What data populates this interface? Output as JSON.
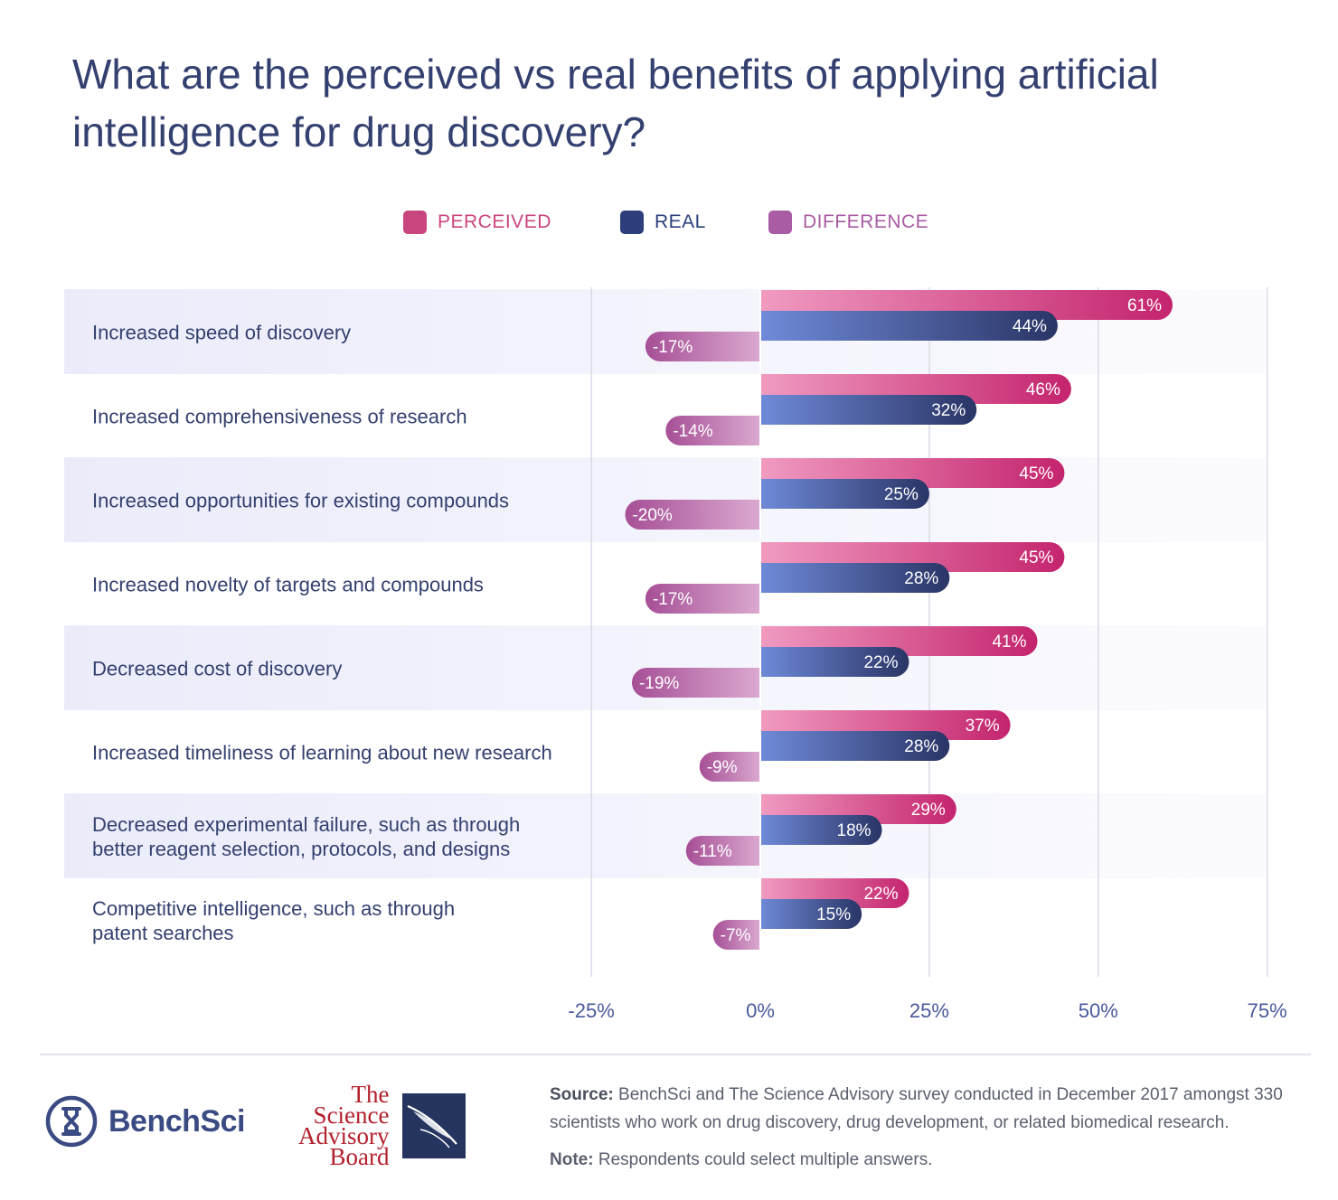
{
  "title": "What are the perceived vs real benefits of applying artificial intelligence for drug discovery?",
  "legend": [
    {
      "label": "PERCEIVED",
      "color": "#c9457e"
    },
    {
      "label": "REAL",
      "color": "#2c3f7c"
    },
    {
      "label": "DIFFERENCE",
      "color": "#a95ba3"
    }
  ],
  "colors": {
    "perceived_start": "#f09bc0",
    "perceived_end": "#c4246e",
    "real_start": "#6f8ad8",
    "real_end": "#2a3566",
    "difference_start": "#a64f96",
    "difference_end": "#dba9d0",
    "band": "#eff0fb",
    "grid": "#d9dbe8",
    "axis_text": "#4a5a9a",
    "category_text": "#34406f"
  },
  "chart_data": {
    "type": "bar",
    "orientation": "horizontal",
    "categories": [
      "Increased speed of discovery",
      "Increased comprehensiveness of research",
      "Increased opportunities for existing compounds",
      "Increased novelty of targets and compounds",
      "Decreased cost of discovery",
      "Increased timeliness of learning about new research",
      "Decreased experimental failure, such as through better reagent selection, protocols, and designs",
      "Competitive intelligence, such as through patent searches"
    ],
    "category_lines": [
      [
        "Increased speed of discovery"
      ],
      [
        "Increased comprehensiveness of research"
      ],
      [
        "Increased opportunities for existing compounds"
      ],
      [
        "Increased novelty of targets and compounds"
      ],
      [
        "Decreased cost of discovery"
      ],
      [
        "Increased timeliness of learning about new research"
      ],
      [
        "Decreased experimental failure, such as through",
        "better reagent selection, protocols, and designs"
      ],
      [
        "Competitive intelligence, such as through",
        "patent searches"
      ]
    ],
    "series": [
      {
        "name": "PERCEIVED",
        "values": [
          61,
          46,
          45,
          45,
          41,
          37,
          29,
          22
        ]
      },
      {
        "name": "REAL",
        "values": [
          44,
          32,
          25,
          28,
          22,
          28,
          18,
          15
        ]
      },
      {
        "name": "DIFFERENCE",
        "values": [
          -17,
          -14,
          -20,
          -17,
          -19,
          -9,
          -11,
          -7
        ]
      }
    ],
    "value_suffix": "%",
    "xlim": [
      -25,
      75
    ],
    "xticks": [
      -25,
      0,
      25,
      50,
      75
    ],
    "xtick_labels": [
      "-25%",
      "0%",
      "25%",
      "50%",
      "75%"
    ],
    "grid": true,
    "legend_position": "top-center"
  },
  "footer": {
    "benchsci_name": "BenchSci",
    "tsab_lines": [
      "The",
      "Science",
      "Advisory",
      "Board"
    ],
    "source_label": "Source:",
    "source_text": "BenchSci and The Science Advisory survey conducted in December 2017 amongst 330 scientists who work on drug discovery, drug development, or related biomedical research.",
    "note_label": "Note:",
    "note_text": "Respondents could select multiple answers."
  }
}
